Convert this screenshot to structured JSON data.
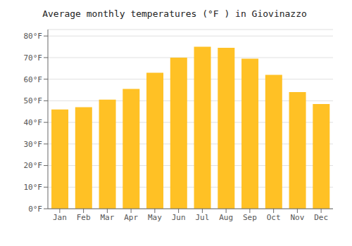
{
  "chart_data": {
    "type": "bar",
    "title": "Average monthly temperatures (°F ) in Giovinazzo",
    "categories": [
      "Jan",
      "Feb",
      "Mar",
      "Apr",
      "May",
      "Jun",
      "Jul",
      "Aug",
      "Sep",
      "Oct",
      "Nov",
      "Dec"
    ],
    "values": [
      46,
      47,
      50.5,
      55.5,
      63,
      70,
      75,
      74.5,
      69.5,
      62,
      54,
      48.5
    ],
    "color": "#FFC125",
    "ylim": [
      0,
      83
    ],
    "yticks": [
      {
        "value": 0,
        "label": "0°F"
      },
      {
        "value": 10,
        "label": "10°F"
      },
      {
        "value": 20,
        "label": "20°F"
      },
      {
        "value": 30,
        "label": "30°F"
      },
      {
        "value": 40,
        "label": "40°F"
      },
      {
        "value": 50,
        "label": "50°F"
      },
      {
        "value": 60,
        "label": "60°F"
      },
      {
        "value": 70,
        "label": "70°F"
      },
      {
        "value": 80,
        "label": "80°F"
      }
    ],
    "grid": true
  }
}
